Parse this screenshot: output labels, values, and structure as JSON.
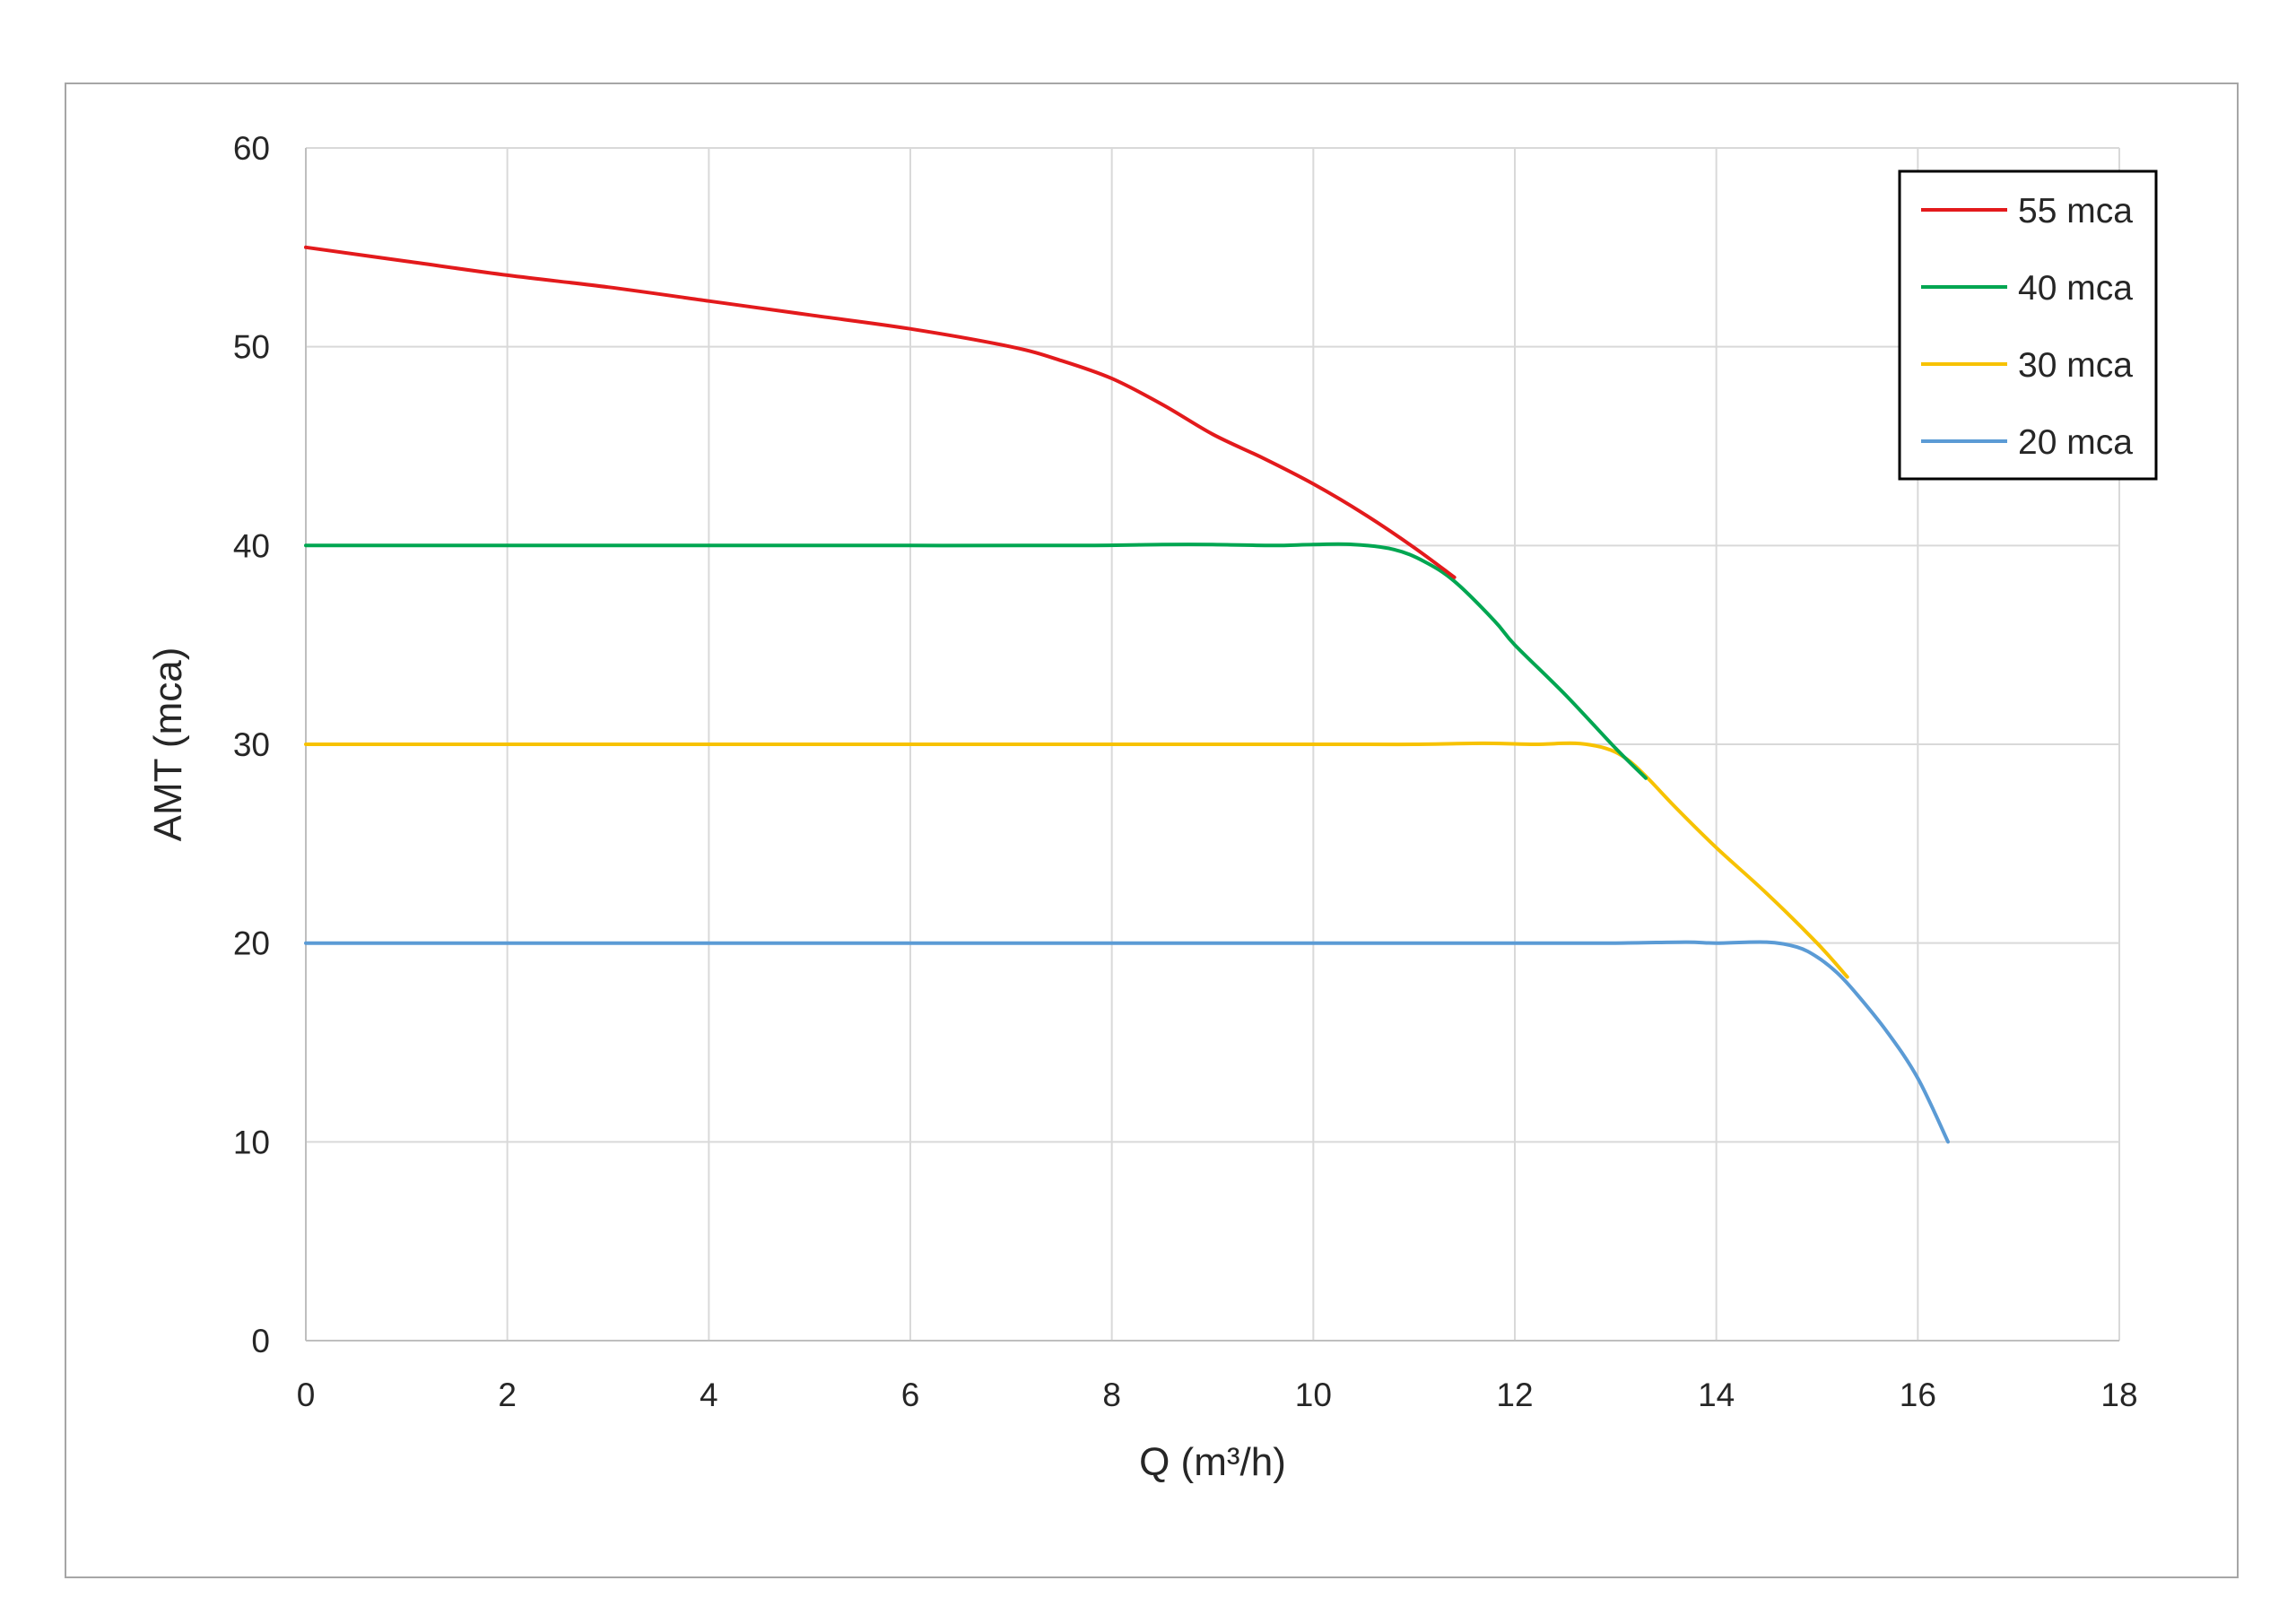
{
  "chart_data": {
    "type": "line",
    "title": "",
    "xlabel": "Q (m³/h)",
    "ylabel": "AMT (mca)",
    "xlim": [
      0,
      18
    ],
    "ylim": [
      0,
      60
    ],
    "xticks": [
      "0",
      "2",
      "4",
      "6",
      "8",
      "10",
      "12",
      "14",
      "16",
      "18"
    ],
    "yticks": [
      "0",
      "10",
      "20",
      "30",
      "40",
      "50",
      "60"
    ],
    "grid": true,
    "legend_position": "top-right",
    "series": [
      {
        "name": "55 mca",
        "color": "#e31a1c",
        "x": [
          0,
          1,
          2,
          3,
          4,
          5,
          6,
          7,
          7.5,
          8,
          8.5,
          9,
          9.5,
          10,
          10.5,
          11,
          11.4
        ],
        "y": [
          55,
          54.3,
          53.6,
          53,
          52.3,
          51.6,
          50.9,
          50,
          49.3,
          48.4,
          47.1,
          45.6,
          44.4,
          43.1,
          41.6,
          39.9,
          38.4
        ]
      },
      {
        "name": "40 mca",
        "color": "#00a651",
        "x": [
          0,
          2,
          4,
          6,
          7.7,
          8.5,
          9,
          9.6,
          10,
          10.4,
          10.8,
          11.1,
          11.4,
          11.8,
          12,
          12.5,
          13,
          13.3
        ],
        "y": [
          40,
          40,
          40,
          40,
          40,
          40.05,
          40.05,
          40,
          40.05,
          40.05,
          39.8,
          39.2,
          38.2,
          36.2,
          35,
          32.5,
          29.8,
          28.3
        ]
      },
      {
        "name": "30 mca",
        "color": "#f7c200",
        "x": [
          0,
          2,
          4,
          6,
          8,
          10,
          11,
          11.7,
          12.2,
          12.6,
          12.9,
          13.1,
          13.3,
          13.6,
          14,
          14.5,
          15,
          15.3
        ],
        "y": [
          30,
          30,
          30,
          30,
          30,
          30,
          30,
          30.05,
          30,
          30.05,
          29.8,
          29.3,
          28.4,
          26.8,
          24.8,
          22.5,
          20,
          18.3
        ]
      },
      {
        "name": "20 mca",
        "color": "#5b9bd5",
        "x": [
          0,
          2,
          4,
          6,
          8,
          10,
          12,
          13,
          13.7,
          14,
          14.5,
          14.8,
          15,
          15.2,
          15.4,
          15.7,
          16,
          16.3
        ],
        "y": [
          20,
          20,
          20,
          20,
          20,
          20,
          20,
          20,
          20.05,
          20,
          20.05,
          19.8,
          19.3,
          18.5,
          17.4,
          15.5,
          13.2,
          10
        ]
      }
    ]
  }
}
